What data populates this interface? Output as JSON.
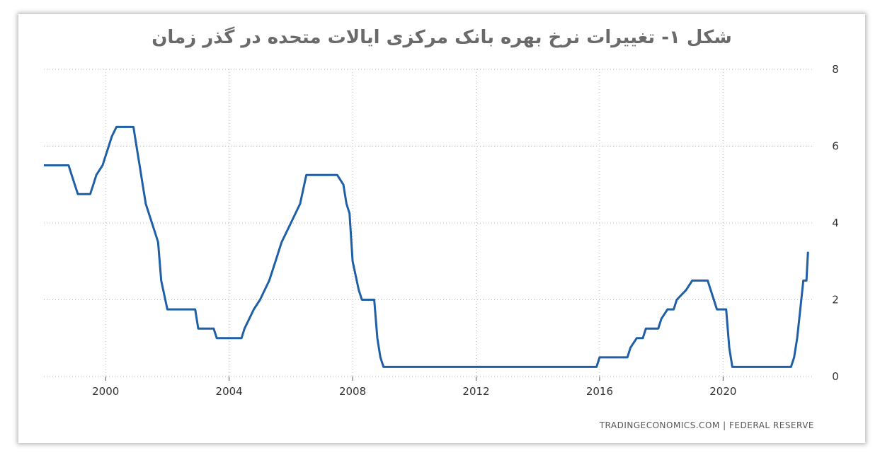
{
  "chart_data": {
    "type": "line",
    "title": "شکل ۱- تغییرات نرخ بهره بانک مرکزی ایالات متحده در گذر زمان",
    "xlabel": "",
    "ylabel": "",
    "xlim": [
      1998.0,
      2022.95
    ],
    "ylim": [
      0,
      8
    ],
    "x_ticks": [
      "2000",
      "2004",
      "2008",
      "2012",
      "2016",
      "2020"
    ],
    "y_ticks": [
      "0",
      "2",
      "4",
      "6",
      "8"
    ],
    "grid": true,
    "legend": "none",
    "source": "TRADINGECONOMICS.COM  |  FEDERAL RESERVE",
    "line_color": "#1f5fa6",
    "series": [
      {
        "x": [
          1998.0,
          1998.8,
          1998.9,
          1999.0,
          1999.1,
          1999.5,
          1999.6,
          1999.7,
          1999.9,
          2000.0,
          2000.1,
          2000.2,
          2000.35,
          2000.9,
          2001.0,
          2001.1,
          2001.2,
          2001.3,
          2001.5,
          2001.6,
          2001.7,
          2001.8,
          2002.0,
          2002.9,
          2003.0,
          2003.5,
          2003.6,
          2004.4,
          2004.5,
          2004.8,
          2005.0,
          2005.3,
          2005.5,
          2005.7,
          2006.0,
          2006.3,
          2006.5,
          2007.5,
          2007.7,
          2007.8,
          2007.9,
          2008.0,
          2008.2,
          2008.3,
          2008.7,
          2008.8,
          2008.9,
          2009.0,
          2015.9,
          2016.0,
          2016.9,
          2017.0,
          2017.2,
          2017.4,
          2017.5,
          2017.9,
          2018.0,
          2018.2,
          2018.4,
          2018.5,
          2018.8,
          2019.0,
          2019.5,
          2019.6,
          2019.7,
          2019.8,
          2020.1,
          2020.2,
          2020.3,
          2022.2,
          2022.3,
          2022.4,
          2022.5,
          2022.6,
          2022.7,
          2022.75
        ],
        "y": [
          5.5,
          5.5,
          5.25,
          5.0,
          4.75,
          4.75,
          5.0,
          5.25,
          5.5,
          5.75,
          6.0,
          6.25,
          6.5,
          6.5,
          6.0,
          5.5,
          5.0,
          4.5,
          4.0,
          3.75,
          3.5,
          2.5,
          1.75,
          1.75,
          1.25,
          1.25,
          1.0,
          1.0,
          1.25,
          1.75,
          2.0,
          2.5,
          3.0,
          3.5,
          4.0,
          4.5,
          5.25,
          5.25,
          5.0,
          4.5,
          4.25,
          3.0,
          2.25,
          2.0,
          2.0,
          1.0,
          0.5,
          0.25,
          0.25,
          0.5,
          0.5,
          0.75,
          1.0,
          1.0,
          1.25,
          1.25,
          1.5,
          1.75,
          1.75,
          2.0,
          2.25,
          2.5,
          2.5,
          2.25,
          2.0,
          1.75,
          1.75,
          0.75,
          0.25,
          0.25,
          0.5,
          1.0,
          1.75,
          2.5,
          2.5,
          3.25
        ]
      }
    ]
  }
}
